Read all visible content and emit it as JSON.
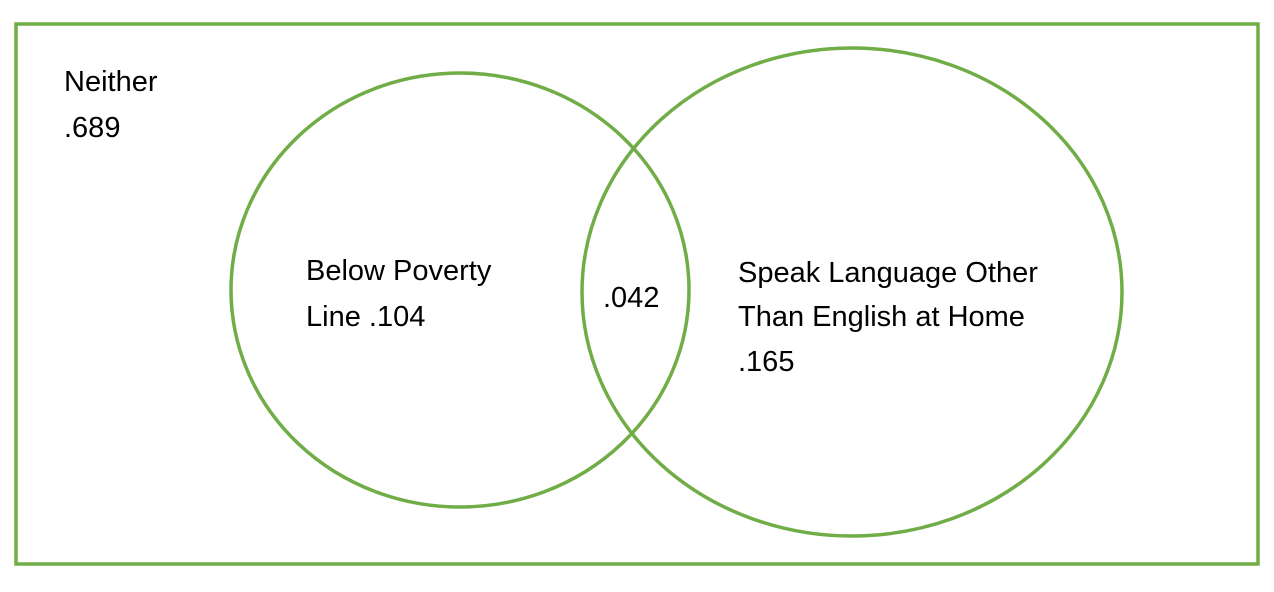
{
  "colors": {
    "outline": "#70ad47",
    "text": "#000000",
    "background": "#ffffff"
  },
  "venn": {
    "universe": {
      "label": "Neither",
      "value": ".689"
    },
    "sets": [
      {
        "label_lines": [
          "Below Poverty",
          "Line .104"
        ]
      },
      {
        "label_lines": [
          "Speak Language Other",
          "Than English at Home",
          ".165"
        ]
      }
    ],
    "intersection": {
      "value": ".042"
    }
  }
}
